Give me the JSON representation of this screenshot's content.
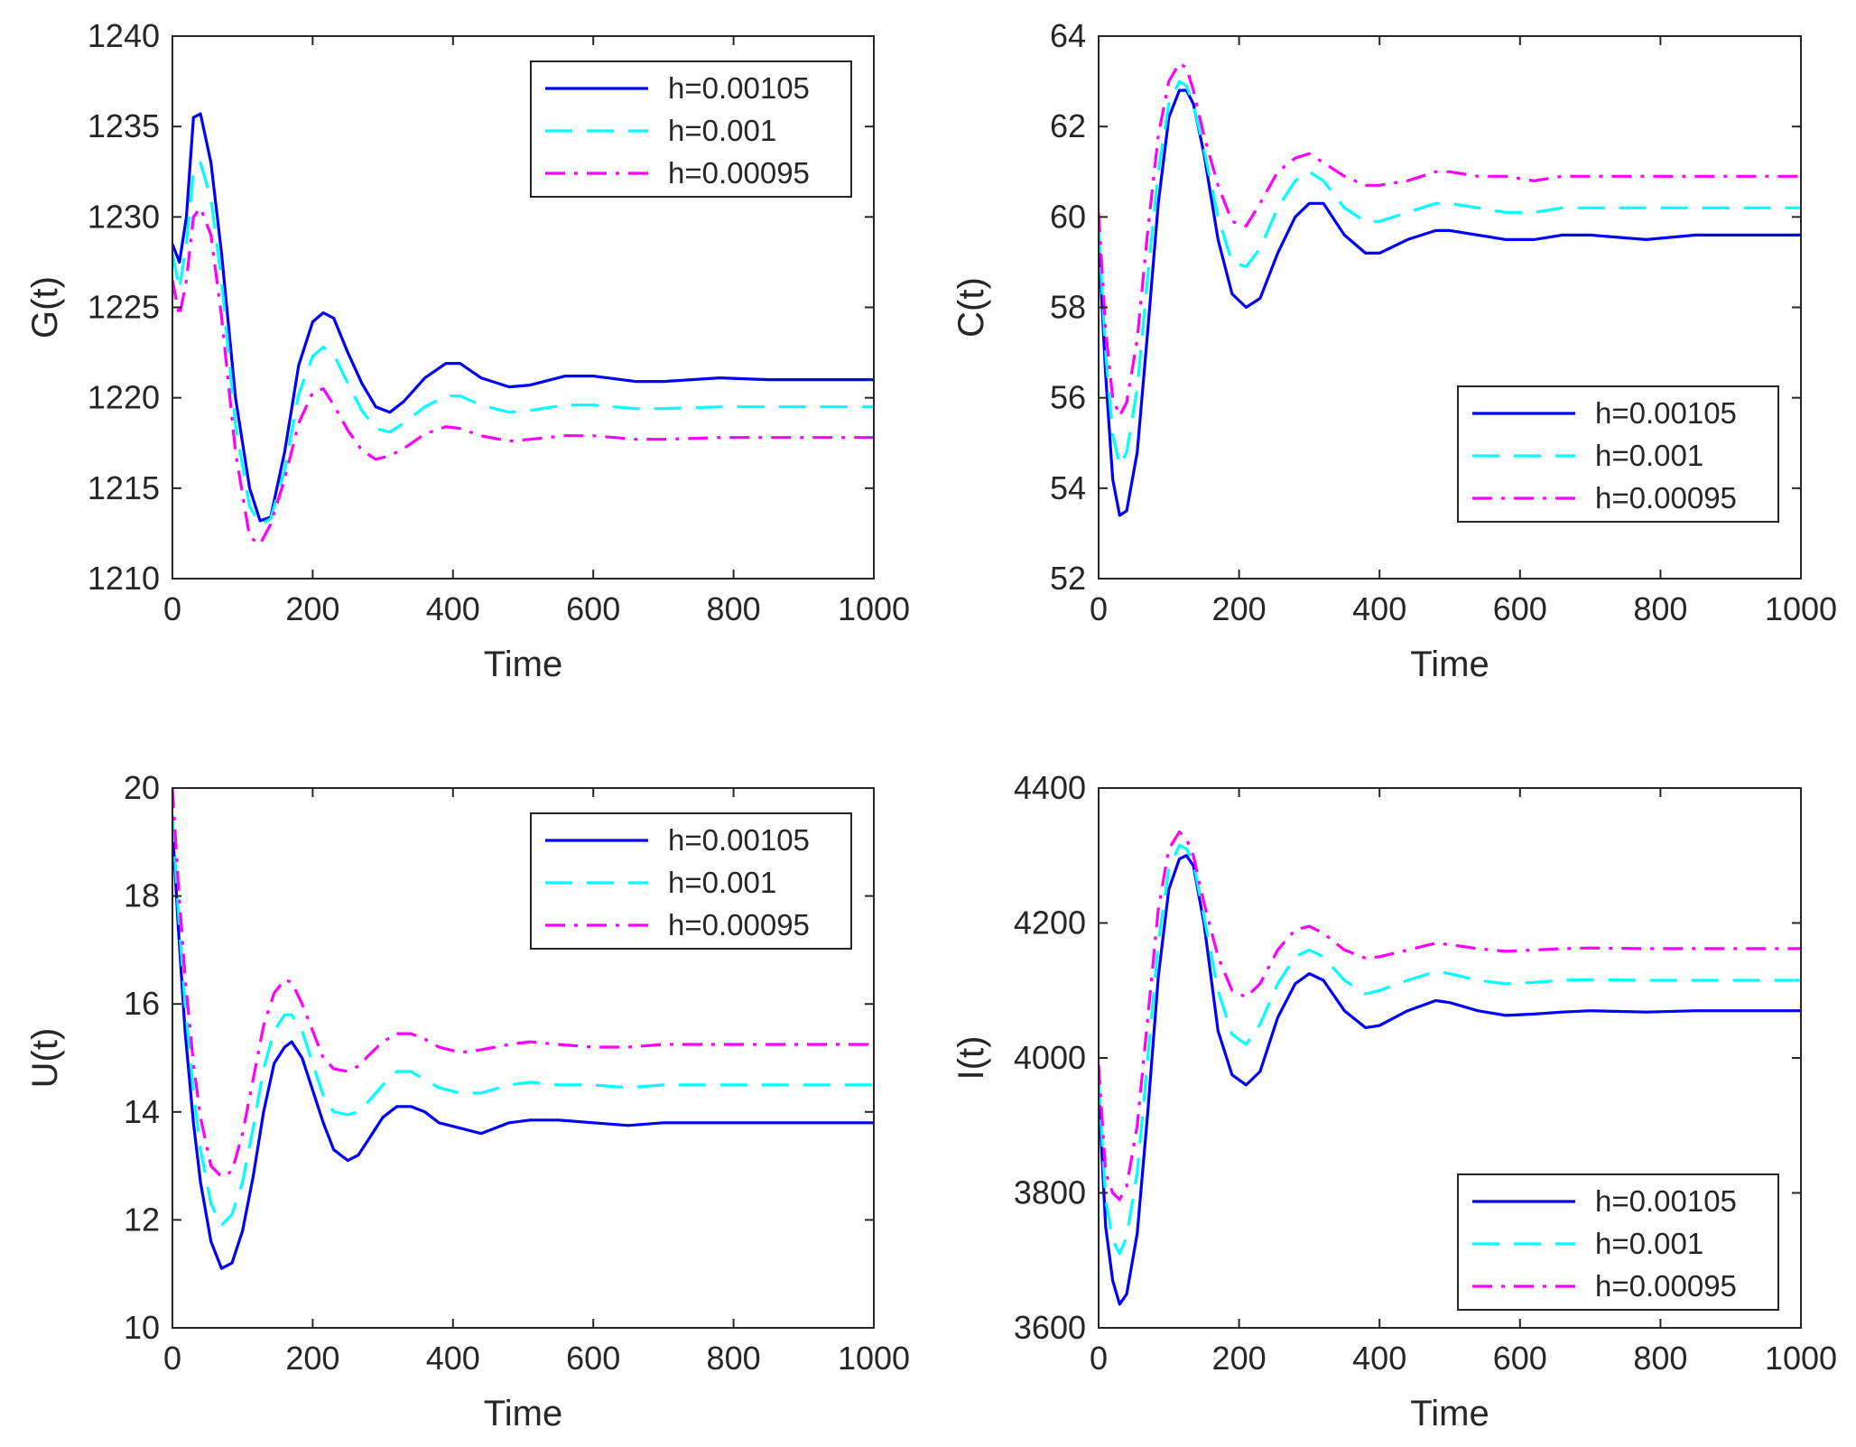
{
  "chart_data": [
    {
      "type": "line",
      "title": "",
      "xlabel": "Time",
      "ylabel": "G(t)",
      "xlim": [
        0,
        1000
      ],
      "ylim": [
        1210,
        1240
      ],
      "xticks": [
        0,
        200,
        400,
        600,
        800,
        1000
      ],
      "yticks": [
        1210,
        1215,
        1220,
        1225,
        1230,
        1235,
        1240
      ],
      "legend_position": "top-right",
      "series": [
        {
          "name": "h=0.00105",
          "style": "solid",
          "color": "#0000ff",
          "x": [
            0,
            10,
            20,
            30,
            40,
            55,
            70,
            90,
            110,
            125,
            140,
            160,
            180,
            200,
            215,
            230,
            250,
            270,
            290,
            310,
            330,
            360,
            390,
            410,
            440,
            480,
            510,
            560,
            600,
            660,
            700,
            780,
            850,
            1000
          ],
          "y": [
            1228.5,
            1227.5,
            1230,
            1235.5,
            1235.7,
            1233,
            1228,
            1220,
            1215,
            1213.2,
            1213.4,
            1217,
            1221.8,
            1224.2,
            1224.7,
            1224.4,
            1222.5,
            1220.8,
            1219.5,
            1219.2,
            1219.8,
            1221.1,
            1221.9,
            1221.9,
            1221.1,
            1220.6,
            1220.7,
            1221.2,
            1221.2,
            1220.9,
            1220.9,
            1221.1,
            1221.0,
            1221.0
          ]
        },
        {
          "name": "h=0.001",
          "style": "dashed",
          "color": "#00ffff",
          "x": [
            0,
            10,
            20,
            30,
            40,
            55,
            70,
            90,
            110,
            125,
            140,
            160,
            180,
            200,
            215,
            230,
            250,
            270,
            290,
            310,
            330,
            360,
            390,
            410,
            440,
            480,
            510,
            560,
            600,
            660,
            700,
            780,
            850,
            1000
          ],
          "y": [
            1228,
            1226,
            1228.5,
            1232.5,
            1233,
            1231,
            1226.5,
            1218.5,
            1214,
            1213,
            1213.3,
            1216,
            1220.2,
            1222.3,
            1222.8,
            1222.4,
            1220.8,
            1219.3,
            1218.3,
            1218.1,
            1218.6,
            1219.5,
            1220.1,
            1220.1,
            1219.6,
            1219.2,
            1219.3,
            1219.6,
            1219.6,
            1219.4,
            1219.4,
            1219.5,
            1219.5,
            1219.5
          ]
        },
        {
          "name": "h=0.00095",
          "style": "dashdot",
          "color": "#ff00ff",
          "x": [
            0,
            10,
            20,
            30,
            40,
            55,
            70,
            90,
            110,
            125,
            140,
            160,
            180,
            200,
            215,
            230,
            250,
            270,
            290,
            310,
            330,
            360,
            390,
            410,
            440,
            480,
            510,
            560,
            600,
            660,
            700,
            780,
            850,
            1000
          ],
          "y": [
            1226.5,
            1224.5,
            1226.5,
            1230,
            1230.5,
            1229,
            1224.5,
            1217,
            1212.3,
            1211.9,
            1213,
            1215.5,
            1218.6,
            1220.3,
            1220.5,
            1219.6,
            1218.2,
            1217.1,
            1216.6,
            1216.8,
            1217.2,
            1218.0,
            1218.4,
            1218.3,
            1217.9,
            1217.6,
            1217.7,
            1217.9,
            1217.9,
            1217.7,
            1217.7,
            1217.8,
            1217.8,
            1217.8
          ]
        }
      ]
    },
    {
      "type": "line",
      "title": "",
      "xlabel": "Time",
      "ylabel": "C(t)",
      "xlim": [
        0,
        1000
      ],
      "ylim": [
        52,
        64
      ],
      "xticks": [
        0,
        200,
        400,
        600,
        800,
        1000
      ],
      "yticks": [
        52,
        54,
        56,
        58,
        60,
        62,
        64
      ],
      "legend_position": "right",
      "series": [
        {
          "name": "h=0.00105",
          "style": "solid",
          "color": "#0000ff",
          "x": [
            0,
            10,
            20,
            30,
            40,
            55,
            70,
            85,
            100,
            115,
            125,
            135,
            150,
            170,
            190,
            210,
            230,
            255,
            280,
            300,
            320,
            350,
            380,
            400,
            440,
            480,
            500,
            540,
            580,
            620,
            660,
            700,
            780,
            850,
            1000
          ],
          "y": [
            59.5,
            56.5,
            54.2,
            53.4,
            53.5,
            54.8,
            57.5,
            60.3,
            62.2,
            62.8,
            62.8,
            62.5,
            61.4,
            59.5,
            58.3,
            58.0,
            58.2,
            59.2,
            60.0,
            60.3,
            60.3,
            59.6,
            59.2,
            59.2,
            59.5,
            59.7,
            59.7,
            59.6,
            59.5,
            59.5,
            59.6,
            59.6,
            59.5,
            59.6,
            59.6
          ]
        },
        {
          "name": "h=0.001",
          "style": "dashed",
          "color": "#00ffff",
          "x": [
            0,
            10,
            20,
            30,
            40,
            55,
            70,
            85,
            100,
            115,
            125,
            135,
            150,
            170,
            190,
            210,
            230,
            255,
            280,
            300,
            320,
            350,
            380,
            400,
            440,
            480,
            500,
            540,
            580,
            620,
            660,
            700,
            780,
            850,
            1000
          ],
          "y": [
            59.8,
            57.0,
            55.2,
            54.5,
            54.8,
            56.2,
            58.7,
            61.0,
            62.5,
            63.0,
            62.9,
            62.5,
            61.5,
            60.0,
            59.0,
            58.9,
            59.3,
            60.2,
            60.8,
            61.0,
            60.8,
            60.2,
            59.9,
            59.9,
            60.1,
            60.3,
            60.3,
            60.2,
            60.1,
            60.1,
            60.2,
            60.2,
            60.2,
            60.2,
            60.2
          ]
        },
        {
          "name": "h=0.00095",
          "style": "dashdot",
          "color": "#ff00ff",
          "x": [
            0,
            10,
            20,
            30,
            40,
            55,
            70,
            85,
            100,
            115,
            125,
            135,
            150,
            170,
            190,
            210,
            230,
            255,
            280,
            300,
            320,
            350,
            380,
            400,
            440,
            480,
            500,
            540,
            580,
            620,
            660,
            700,
            780,
            850,
            1000
          ],
          "y": [
            60.1,
            57.5,
            56.0,
            55.6,
            55.9,
            57.3,
            59.7,
            61.8,
            63.0,
            63.4,
            63.3,
            62.8,
            61.8,
            60.7,
            59.9,
            59.8,
            60.3,
            61.0,
            61.3,
            61.4,
            61.2,
            60.9,
            60.7,
            60.7,
            60.8,
            61.0,
            61.0,
            60.9,
            60.9,
            60.8,
            60.9,
            60.9,
            60.9,
            60.9,
            60.9
          ]
        }
      ]
    },
    {
      "type": "line",
      "title": "",
      "xlabel": "Time",
      "ylabel": "U(t)",
      "xlim": [
        0,
        1000
      ],
      "ylim": [
        10,
        20
      ],
      "xticks": [
        0,
        200,
        400,
        600,
        800,
        1000
      ],
      "yticks": [
        10,
        12,
        14,
        16,
        18,
        20
      ],
      "legend_position": "top-right",
      "series": [
        {
          "name": "h=0.00105",
          "style": "solid",
          "color": "#0000ff",
          "x": [
            0,
            8,
            18,
            30,
            40,
            55,
            70,
            85,
            100,
            115,
            130,
            145,
            160,
            170,
            185,
            200,
            215,
            230,
            250,
            265,
            280,
            300,
            320,
            340,
            360,
            380,
            410,
            440,
            480,
            510,
            550,
            600,
            650,
            700,
            760,
            850,
            1000
          ],
          "y": [
            19.3,
            17.5,
            15.5,
            13.8,
            12.7,
            11.6,
            11.1,
            11.2,
            11.8,
            12.8,
            14.0,
            14.9,
            15.2,
            15.3,
            15.0,
            14.4,
            13.8,
            13.3,
            13.1,
            13.2,
            13.5,
            13.9,
            14.1,
            14.1,
            14.0,
            13.8,
            13.7,
            13.6,
            13.8,
            13.85,
            13.85,
            13.8,
            13.75,
            13.8,
            13.8,
            13.8,
            13.8
          ]
        },
        {
          "name": "h=0.001",
          "style": "dashed",
          "color": "#00ffff",
          "x": [
            0,
            8,
            18,
            30,
            40,
            55,
            70,
            85,
            100,
            115,
            130,
            145,
            160,
            170,
            185,
            200,
            215,
            230,
            250,
            265,
            280,
            300,
            320,
            340,
            360,
            380,
            410,
            440,
            480,
            510,
            550,
            600,
            650,
            700,
            760,
            850,
            1000
          ],
          "y": [
            19.5,
            17.8,
            16.0,
            14.4,
            13.3,
            12.3,
            11.9,
            12.1,
            12.7,
            13.7,
            14.8,
            15.5,
            15.8,
            15.8,
            15.5,
            14.9,
            14.3,
            14.0,
            13.95,
            14.0,
            14.2,
            14.5,
            14.75,
            14.75,
            14.6,
            14.45,
            14.35,
            14.35,
            14.5,
            14.55,
            14.5,
            14.5,
            14.45,
            14.5,
            14.5,
            14.5,
            14.5
          ]
        },
        {
          "name": "h=0.00095",
          "style": "dashdot",
          "color": "#ff00ff",
          "x": [
            0,
            8,
            18,
            30,
            40,
            55,
            70,
            85,
            100,
            115,
            130,
            145,
            160,
            170,
            185,
            200,
            215,
            230,
            250,
            265,
            280,
            300,
            320,
            340,
            360,
            380,
            410,
            440,
            480,
            510,
            550,
            600,
            650,
            700,
            760,
            850,
            1000
          ],
          "y": [
            20.0,
            18.3,
            16.5,
            14.9,
            13.9,
            13.0,
            12.8,
            12.9,
            13.6,
            14.6,
            15.6,
            16.2,
            16.45,
            16.4,
            16.0,
            15.5,
            15.0,
            14.8,
            14.75,
            14.85,
            15.05,
            15.3,
            15.45,
            15.45,
            15.35,
            15.2,
            15.1,
            15.15,
            15.25,
            15.3,
            15.25,
            15.2,
            15.2,
            15.25,
            15.25,
            15.25,
            15.25
          ]
        }
      ]
    },
    {
      "type": "line",
      "title": "",
      "xlabel": "Time",
      "ylabel": "I(t)",
      "xlim": [
        0,
        1000
      ],
      "ylim": [
        3600,
        4400
      ],
      "xticks": [
        0,
        200,
        400,
        600,
        800,
        1000
      ],
      "yticks": [
        3600,
        3800,
        4000,
        4200,
        4400
      ],
      "legend_position": "bottom-right",
      "series": [
        {
          "name": "h=0.00105",
          "style": "solid",
          "color": "#0000ff",
          "x": [
            0,
            10,
            20,
            30,
            40,
            55,
            70,
            85,
            100,
            115,
            125,
            135,
            150,
            170,
            190,
            210,
            230,
            255,
            280,
            300,
            320,
            350,
            380,
            400,
            440,
            480,
            500,
            540,
            580,
            620,
            660,
            700,
            780,
            850,
            1000
          ],
          "y": [
            3950,
            3750,
            3670,
            3635,
            3650,
            3740,
            3920,
            4120,
            4250,
            4295,
            4300,
            4285,
            4200,
            4040,
            3975,
            3960,
            3980,
            4060,
            4110,
            4125,
            4115,
            4070,
            4045,
            4048,
            4070,
            4085,
            4082,
            4070,
            4063,
            4065,
            4068,
            4070,
            4068,
            4070,
            4070
          ]
        },
        {
          "name": "h=0.001",
          "style": "dashed",
          "color": "#00ffff",
          "x": [
            0,
            10,
            20,
            30,
            40,
            55,
            70,
            85,
            100,
            115,
            125,
            135,
            150,
            170,
            190,
            210,
            230,
            255,
            280,
            300,
            320,
            350,
            380,
            400,
            440,
            480,
            500,
            540,
            580,
            620,
            660,
            700,
            780,
            850,
            1000
          ],
          "y": [
            3970,
            3790,
            3730,
            3710,
            3735,
            3830,
            4000,
            4170,
            4280,
            4315,
            4310,
            4290,
            4210,
            4100,
            4035,
            4020,
            4050,
            4110,
            4150,
            4160,
            4150,
            4115,
            4095,
            4100,
            4115,
            4128,
            4125,
            4115,
            4110,
            4112,
            4115,
            4116,
            4115,
            4115,
            4115
          ]
        },
        {
          "name": "h=0.00095",
          "style": "dashdot",
          "color": "#ff00ff",
          "x": [
            0,
            10,
            20,
            30,
            40,
            55,
            70,
            85,
            100,
            115,
            125,
            135,
            150,
            170,
            190,
            210,
            230,
            255,
            280,
            300,
            320,
            350,
            380,
            400,
            440,
            480,
            500,
            540,
            580,
            620,
            660,
            700,
            780,
            850,
            1000
          ],
          "y": [
            3990,
            3830,
            3800,
            3790,
            3810,
            3900,
            4060,
            4220,
            4310,
            4335,
            4325,
            4300,
            4230,
            4150,
            4100,
            4090,
            4110,
            4160,
            4190,
            4195,
            4185,
            4160,
            4148,
            4150,
            4160,
            4170,
            4168,
            4162,
            4158,
            4160,
            4162,
            4163,
            4162,
            4162,
            4162
          ]
        }
      ]
    }
  ]
}
